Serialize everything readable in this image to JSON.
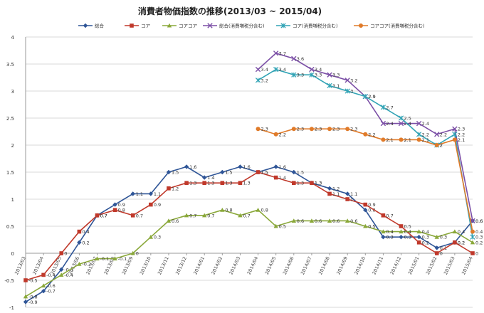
{
  "chart_data": {
    "type": "line",
    "title": "消費者物価指数の推移(2013/03 ~ 2015/04)",
    "xlabel": "",
    "ylabel": "",
    "ylim": [
      -1,
      4
    ],
    "yticks": [
      "4",
      "3.5",
      "3",
      "2.5",
      "2",
      "1.5",
      "1",
      "0.5",
      "0",
      "-0.5",
      "-1"
    ],
    "grid": "horizontal",
    "legend": "top",
    "x": [
      "2013/03",
      "2013/04",
      "2013/05",
      "2013/06",
      "2013/07",
      "2013/08",
      "2013/09",
      "2013/10",
      "2013/11",
      "2013/12",
      "2014/01",
      "2014/02",
      "2014/03",
      "2014/04",
      "2014/05",
      "2014/06",
      "2014/07",
      "2014/08",
      "2014/09",
      "2014/10",
      "2014/11",
      "2014/12",
      "2015/01",
      "2015/02",
      "2015/03",
      "2015/04"
    ],
    "series": [
      {
        "name": "総合",
        "color": "#2f5597",
        "marker": "diamond",
        "values": [
          -0.9,
          -0.7,
          -0.3,
          0.2,
          0.7,
          0.9,
          1.1,
          1.1,
          1.5,
          1.6,
          1.4,
          1.5,
          1.6,
          1.5,
          1.6,
          1.5,
          1.3,
          1.2,
          1.1,
          0.8,
          0.3,
          0.3,
          0.3,
          0.1,
          0.2,
          0.6
        ],
        "labels": [
          "-0.9",
          "-0.7",
          "-0.3",
          "0.2",
          "0.7",
          "0.9",
          "1.1",
          "1.1",
          "1.5",
          "1.6",
          "1.4",
          "1.5",
          "1.6",
          "1.5",
          "1.6",
          "1.5",
          "1.3",
          "1.2",
          "1.1",
          "0.8",
          "0.3",
          "0.3",
          "0.3",
          "0.1",
          "0.2",
          "0.6"
        ]
      },
      {
        "name": "コア",
        "color": "#c0392b",
        "marker": "square",
        "values": [
          -0.5,
          -0.4,
          0,
          0.4,
          0.7,
          0.8,
          0.7,
          0.9,
          1.2,
          1.3,
          1.3,
          1.3,
          1.3,
          1.5,
          1.4,
          1.3,
          1.3,
          1.1,
          1,
          0.9,
          0.7,
          0.5,
          0.2,
          0,
          0.2,
          0
        ],
        "labels": [
          "-0.5",
          "-0.4",
          "0",
          "0.4",
          "0.7",
          "0.8",
          "0.7",
          "0.9",
          "1.2",
          "1.3",
          "1.3",
          "1.3",
          "1.3",
          "1.5",
          "1.4",
          "1.3",
          "1.3",
          "1.1",
          "1",
          "0.9",
          "0.7",
          "0.5",
          "0.2",
          "0",
          "0.2",
          "0"
        ]
      },
      {
        "name": "コアコア",
        "color": "#8aa83a",
        "marker": "triangle",
        "values": [
          -0.8,
          -0.6,
          -0.4,
          -0.2,
          -0.1,
          -0.1,
          0,
          0.3,
          0.6,
          0.7,
          0.7,
          0.8,
          0.7,
          0.8,
          0.5,
          0.6,
          0.6,
          0.6,
          0.6,
          0.5,
          0.4,
          0.4,
          0.4,
          0.3,
          0.4,
          0.2
        ],
        "labels": [
          "-0.8",
          "-0.6",
          "-0.4",
          "-0.2",
          "-0.1",
          "-0.1",
          "0",
          "0.3",
          "0.6",
          "0.7",
          "0.7",
          "0.8",
          "0.7",
          "0.8",
          "0.5",
          "0.6",
          "0.6",
          "0.6",
          "0.6",
          "0.5",
          "0.4",
          "0.4",
          "0.4",
          "0.3",
          "0.4",
          "0.2"
        ]
      },
      {
        "name": "総合(消費増税分含む)",
        "color": "#7b4fa6",
        "marker": "x",
        "values": [
          null,
          null,
          null,
          null,
          null,
          null,
          null,
          null,
          null,
          null,
          null,
          null,
          null,
          3.4,
          3.7,
          3.6,
          3.4,
          3.3,
          3.2,
          2.9,
          2.4,
          2.4,
          2.4,
          2.2,
          2.3,
          0.6
        ],
        "labels": [
          null,
          null,
          null,
          null,
          null,
          null,
          null,
          null,
          null,
          null,
          null,
          null,
          null,
          "3.4",
          "3.7",
          "3.6",
          "3.4",
          "3.3",
          "3.2",
          "2.9",
          "2.4",
          "2.4",
          "2.4",
          "2.2",
          "2.3",
          "0.6"
        ]
      },
      {
        "name": "コア(消費増税分含む)",
        "color": "#31a3b5",
        "marker": "star",
        "values": [
          null,
          null,
          null,
          null,
          null,
          null,
          null,
          null,
          null,
          null,
          null,
          null,
          null,
          3.2,
          3.4,
          3.3,
          3.3,
          3.1,
          3,
          2.9,
          2.7,
          2.5,
          2.2,
          2,
          2.2,
          0.3
        ],
        "labels": [
          null,
          null,
          null,
          null,
          null,
          null,
          null,
          null,
          null,
          null,
          null,
          null,
          null,
          "3.2",
          "3.4",
          "3.3",
          "3.3",
          "3.1",
          "3",
          "2.9",
          "2.7",
          "2.5",
          "2.2",
          "2",
          "2.2",
          "0.3"
        ]
      },
      {
        "name": "コアコア(消費増税分含む)",
        "color": "#e07b2a",
        "marker": "circle",
        "values": [
          null,
          null,
          null,
          null,
          null,
          null,
          null,
          null,
          null,
          null,
          null,
          null,
          null,
          2.3,
          2.2,
          2.3,
          2.3,
          2.3,
          2.3,
          2.2,
          2.1,
          2.1,
          2.1,
          2,
          2.1,
          0.4
        ],
        "labels": [
          null,
          null,
          null,
          null,
          null,
          null,
          null,
          null,
          null,
          null,
          null,
          null,
          null,
          "2.3",
          "2.2",
          "2.3",
          "2.3",
          "2.3",
          "2.3",
          "2.2",
          "2.1",
          "2.1",
          "2.1",
          "2",
          "2.1",
          "0.4"
        ]
      }
    ]
  }
}
